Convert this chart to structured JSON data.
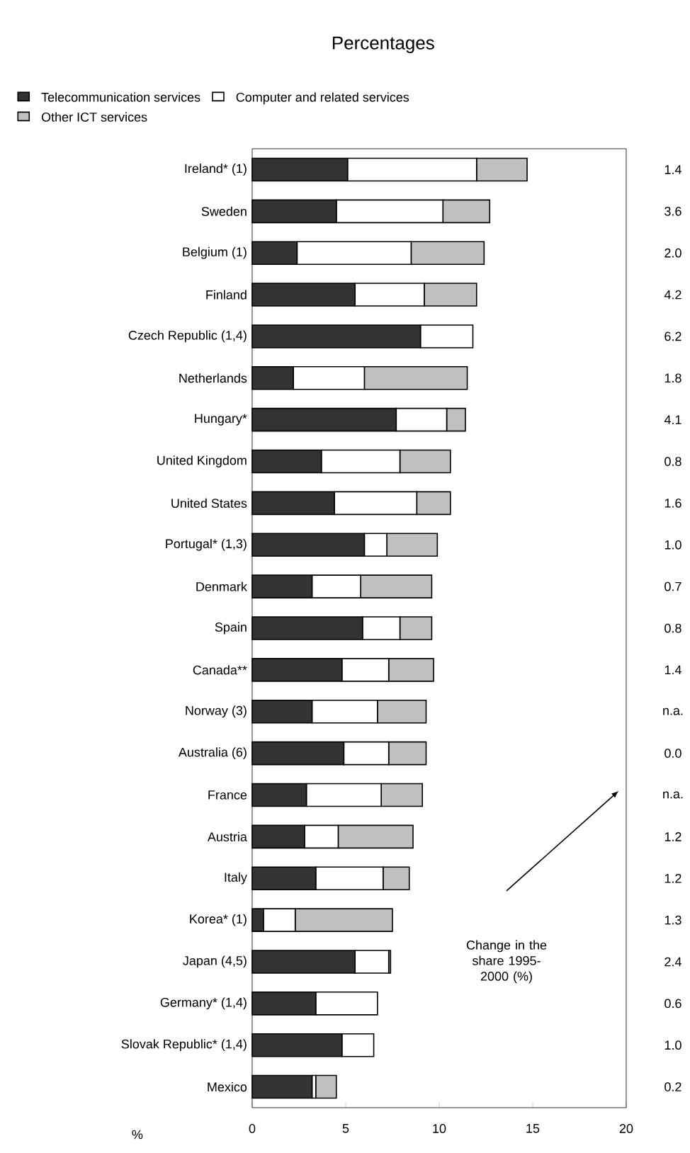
{
  "chart_data": {
    "type": "bar",
    "orientation": "horizontal",
    "stacked": true,
    "title": "Percentages",
    "xlabel": "%",
    "categories": [
      "Ireland* (1)",
      "Sweden",
      "Belgium (1)",
      "Finland",
      "Czech Republic (1,4)",
      "Netherlands",
      "Hungary*",
      "United Kingdom",
      "United States",
      "Portugal* (1,3)",
      "Denmark",
      "Spain",
      "Canada**",
      "Norway (3)",
      "Australia (6)",
      "France",
      "Austria",
      "Italy",
      "Korea* (1)",
      "Japan (4,5)",
      "Germany* (1,4)",
      "Slovak Republic* (1,4)",
      "Mexico"
    ],
    "series": [
      {
        "name": "Telecommunication services",
        "color": "#333333",
        "values": [
          5.1,
          4.5,
          2.4,
          5.5,
          9.0,
          2.2,
          7.7,
          3.7,
          4.4,
          6.0,
          3.2,
          5.9,
          4.8,
          3.2,
          4.9,
          2.9,
          2.8,
          3.4,
          0.6,
          5.5,
          3.4,
          4.8,
          3.2
        ]
      },
      {
        "name": "Computer and related services",
        "color": "#ffffff",
        "values": [
          6.9,
          5.7,
          6.1,
          3.7,
          2.8,
          3.8,
          2.7,
          4.2,
          4.4,
          1.2,
          2.6,
          2.0,
          2.5,
          3.5,
          2.4,
          4.0,
          1.8,
          3.6,
          1.7,
          1.8,
          3.3,
          1.7,
          0.2
        ]
      },
      {
        "name": "Other ICT services",
        "color": "#c0c0c0",
        "values": [
          2.7,
          2.5,
          3.9,
          2.8,
          0,
          5.5,
          1.0,
          2.7,
          1.8,
          2.7,
          3.8,
          1.7,
          2.4,
          2.6,
          2.0,
          2.2,
          4.0,
          1.4,
          5.2,
          0.1,
          0,
          0,
          1.1
        ]
      }
    ],
    "xlim": [
      0,
      20
    ],
    "xticks": [
      0,
      5,
      10,
      15,
      20
    ],
    "legend": "top",
    "annotations": [
      "Change in the share 1995-2000 (%)",
      "1.4",
      "3.6",
      "2.0",
      "4.2",
      "6.2",
      "1.8",
      "4.1",
      "0.8",
      "1.6",
      "1.0",
      "0.7",
      "0.8",
      "1.4",
      "n.a.",
      "0.0",
      "n.a.",
      "1.2",
      "1.2",
      "1.3",
      "2.4",
      "0.6",
      "1.0",
      "0.2"
    ]
  }
}
